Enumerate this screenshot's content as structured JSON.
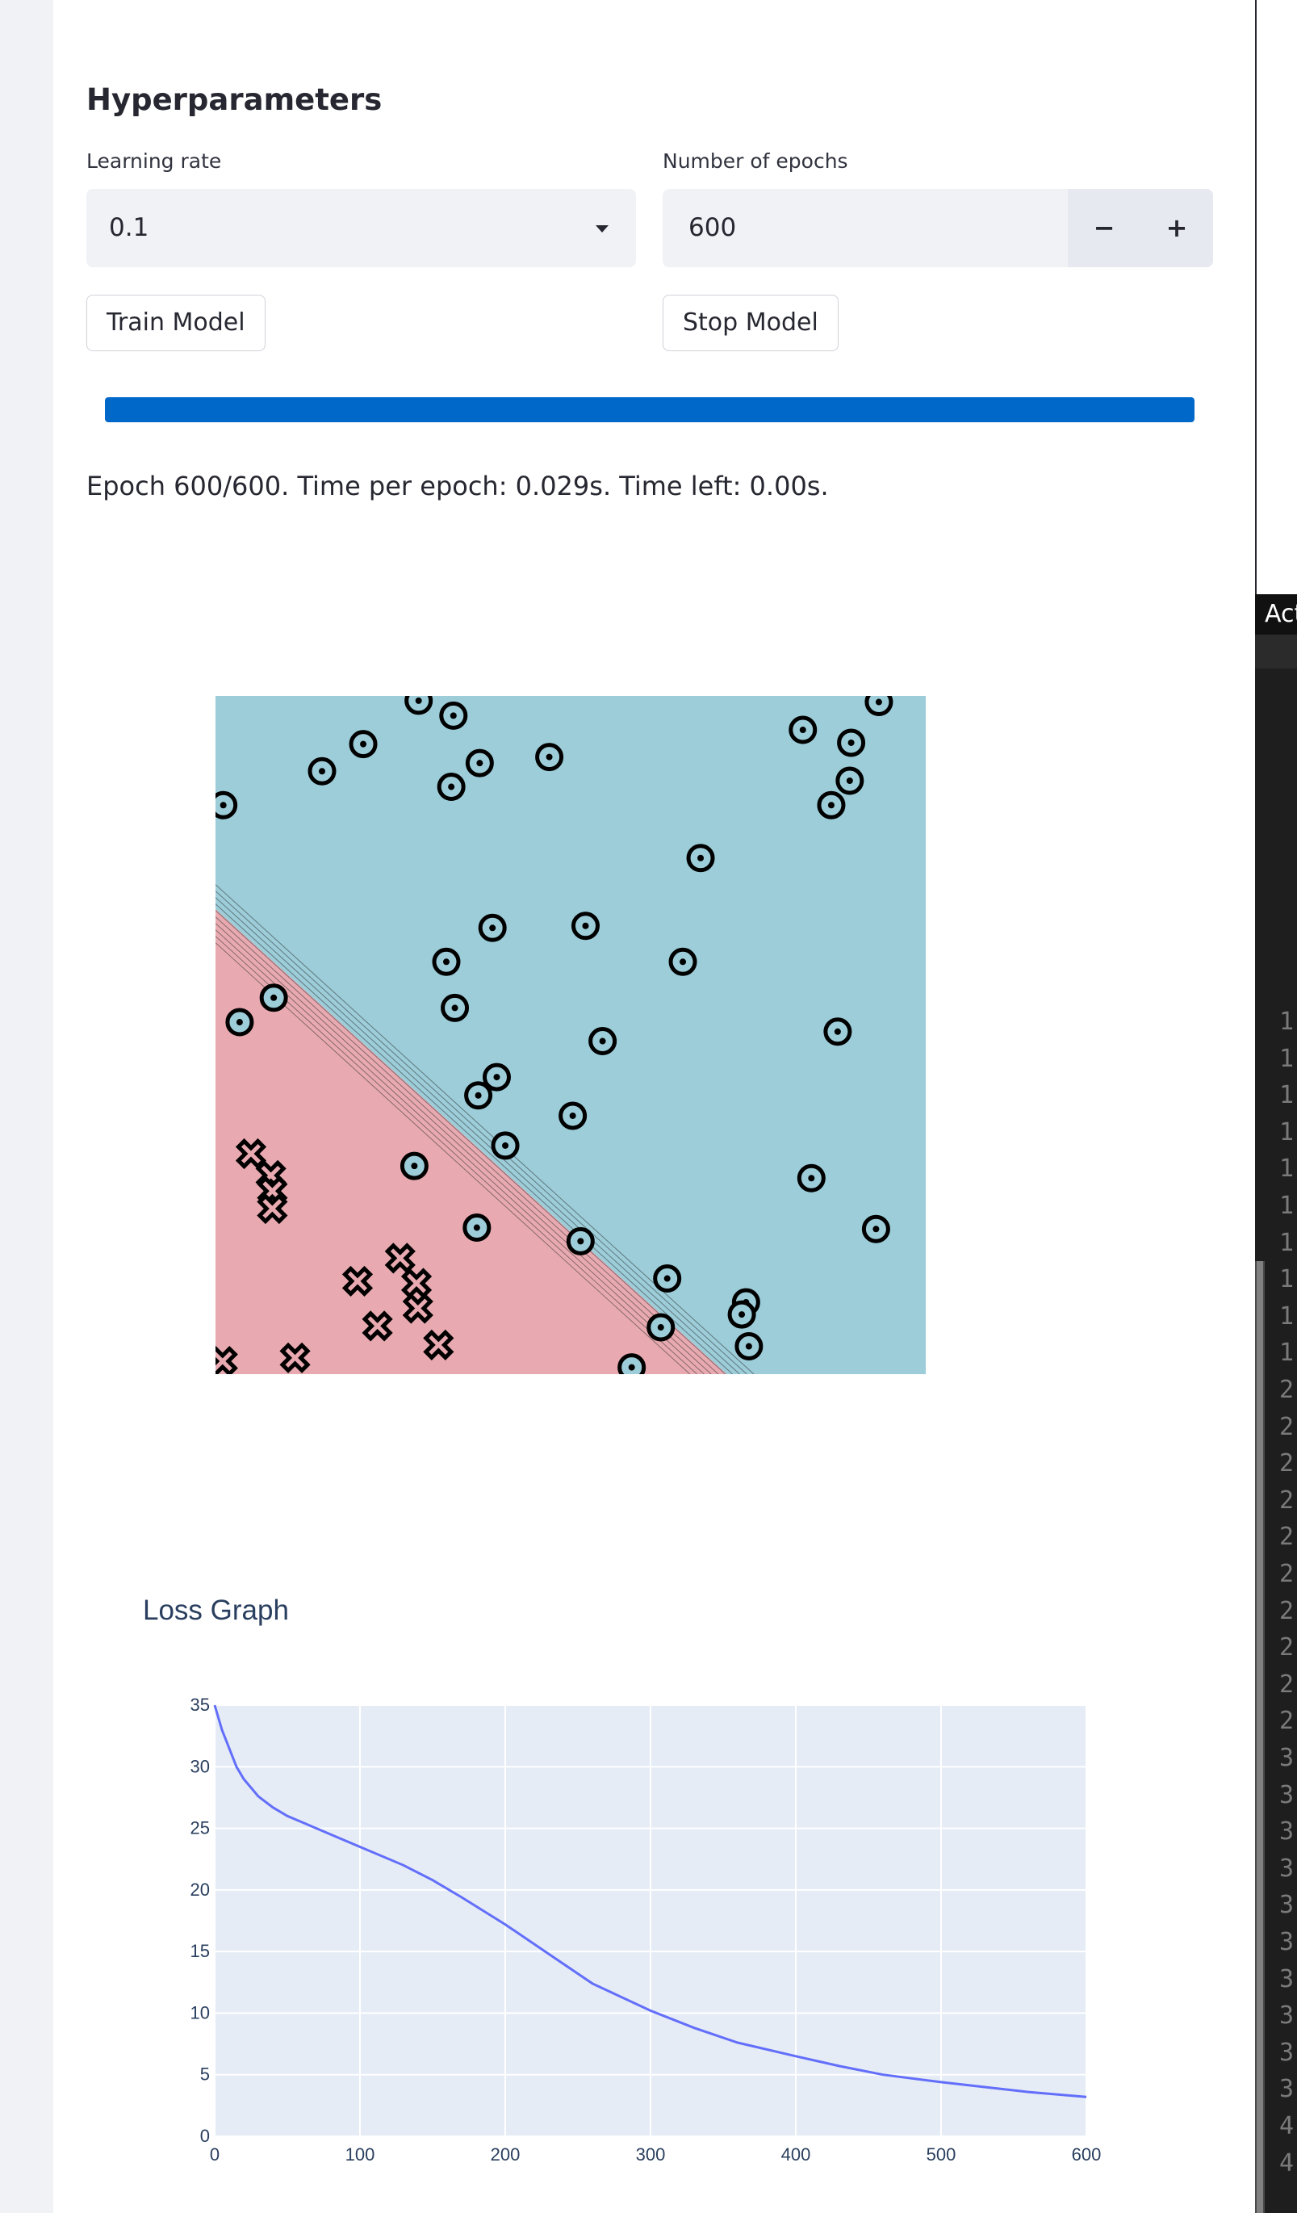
{
  "hyperparameters": {
    "title": "Hyperparameters",
    "learning_rate_label": "Learning rate",
    "learning_rate_value": "0.1",
    "epochs_label": "Number of epochs",
    "epochs_value": "600",
    "decrement_label": "−",
    "increment_label": "+",
    "train_button": "Train Model",
    "stop_button": "Stop Model"
  },
  "progress": {
    "fraction": 1.0,
    "status": "Epoch 600/600. Time per epoch: 0.029s. Time left: 0.00s."
  },
  "side_panel": {
    "tab_label": "Act",
    "line_numbers": [
      "1",
      "1",
      "1",
      "1",
      "1",
      "1",
      "1",
      "1",
      "1",
      "1",
      "2",
      "2",
      "2",
      "2",
      "2",
      "2",
      "2",
      "2",
      "2",
      "2",
      "3",
      "3",
      "3",
      "3",
      "3",
      "3",
      "3",
      "3",
      "3",
      "3",
      "4",
      "4"
    ]
  },
  "decision_boundary": {
    "colors": {
      "class_a_region": "#9ccdd9",
      "class_b_region": "#e8aab0",
      "marker_a_fill": "#9ccdd9",
      "marker_b_fill": "#e8aab0",
      "marker_stroke": "#000000"
    },
    "x_range": [
      0,
      1
    ],
    "y_range": [
      0,
      1
    ],
    "class_a_points": [
      [
        0.286,
        0.993
      ],
      [
        0.335,
        0.971
      ],
      [
        0.208,
        0.929
      ],
      [
        0.372,
        0.901
      ],
      [
        0.15,
        0.889
      ],
      [
        0.332,
        0.866
      ],
      [
        0.47,
        0.91
      ],
      [
        0.827,
        0.95
      ],
      [
        0.934,
        0.991
      ],
      [
        0.895,
        0.931
      ],
      [
        0.893,
        0.875
      ],
      [
        0.867,
        0.839
      ],
      [
        0.011,
        0.839
      ],
      [
        0.683,
        0.761
      ],
      [
        0.39,
        0.658
      ],
      [
        0.521,
        0.661
      ],
      [
        0.325,
        0.608
      ],
      [
        0.658,
        0.608
      ],
      [
        0.337,
        0.54
      ],
      [
        0.082,
        0.555
      ],
      [
        0.034,
        0.519
      ],
      [
        0.545,
        0.491
      ],
      [
        0.876,
        0.505
      ],
      [
        0.396,
        0.438
      ],
      [
        0.37,
        0.411
      ],
      [
        0.503,
        0.381
      ],
      [
        0.408,
        0.337
      ],
      [
        0.28,
        0.307
      ],
      [
        0.839,
        0.289
      ],
      [
        0.368,
        0.216
      ],
      [
        0.514,
        0.196
      ],
      [
        0.93,
        0.214
      ],
      [
        0.636,
        0.141
      ],
      [
        0.747,
        0.106
      ],
      [
        0.741,
        0.088
      ],
      [
        0.627,
        0.069
      ],
      [
        0.751,
        0.041
      ],
      [
        0.586,
        0.01
      ]
    ],
    "class_b_points": [
      [
        0.05,
        0.325
      ],
      [
        0.078,
        0.293
      ],
      [
        0.08,
        0.27
      ],
      [
        0.08,
        0.244
      ],
      [
        0.26,
        0.171
      ],
      [
        0.2,
        0.137
      ],
      [
        0.283,
        0.134
      ],
      [
        0.285,
        0.097
      ],
      [
        0.228,
        0.071
      ],
      [
        0.314,
        0.043
      ],
      [
        0.112,
        0.024
      ],
      [
        0.01,
        0.019
      ]
    ],
    "boundary_offsets": [
      -0.13,
      -0.105,
      -0.08,
      -0.055,
      -0.03,
      -0.005,
      0.02,
      0.045,
      0.07,
      0.095
    ]
  },
  "loss_graph": {
    "title": "Loss Graph",
    "line_color": "#636efa",
    "chart_data": {
      "type": "line",
      "title": "Loss Graph",
      "xlabel": "",
      "ylabel": "",
      "xlim": [
        0,
        600
      ],
      "ylim": [
        0,
        35
      ],
      "x_ticks": [
        "0",
        "100",
        "200",
        "300",
        "400",
        "500",
        "600"
      ],
      "y_ticks": [
        "0",
        "5",
        "10",
        "15",
        "20",
        "25",
        "30",
        "35"
      ],
      "grid": true,
      "series": [
        {
          "x": [
            0,
            5,
            10,
            15,
            20,
            30,
            40,
            50,
            60,
            80,
            100,
            130,
            150,
            170,
            200,
            230,
            260,
            300,
            330,
            360,
            400,
            430,
            460,
            500,
            530,
            560,
            600
          ],
          "y": [
            35.0,
            33.0,
            31.5,
            30.0,
            29.0,
            27.6,
            26.7,
            26.0,
            25.5,
            24.5,
            23.5,
            22.0,
            20.8,
            19.4,
            17.2,
            14.8,
            12.4,
            10.2,
            8.8,
            7.6,
            6.5,
            5.7,
            5.0,
            4.4,
            4.0,
            3.6,
            3.2
          ]
        }
      ]
    }
  }
}
